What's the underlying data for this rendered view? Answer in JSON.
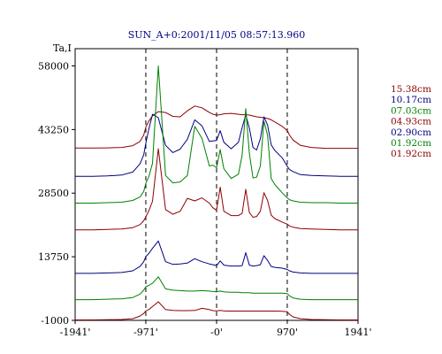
{
  "chart_data": {
    "type": "line",
    "title": "SUN_A+0:2001/11/05 08:57:13.960",
    "ylabel": "Ta,I",
    "xlabel": "",
    "xlim": [
      -1941,
      1941
    ],
    "ylim": [
      -1000,
      62000
    ],
    "x_ticks": [
      {
        "value": -1941,
        "label": "-1941'"
      },
      {
        "value": -971,
        "label": "-971'"
      },
      {
        "value": 0,
        "label": "-0'"
      },
      {
        "value": 970,
        "label": "970'"
      },
      {
        "value": 1941,
        "label": "1941'"
      }
    ],
    "y_ticks": [
      {
        "value": 58000,
        "label": "58000"
      },
      {
        "value": 43250,
        "label": "43250"
      },
      {
        "value": 28500,
        "label": "28500"
      },
      {
        "value": 13750,
        "label": "13750"
      },
      {
        "value": -1000,
        "label": "-1000"
      }
    ],
    "vlines_dashed": [
      -971,
      0,
      970
    ],
    "grid": false,
    "legend_position": "right",
    "x": [
      -1941,
      -1700,
      -1500,
      -1300,
      -1150,
      -1050,
      -1000,
      -971,
      -930,
      -880,
      -800,
      -700,
      -600,
      -500,
      -400,
      -300,
      -200,
      -100,
      -50,
      0,
      50,
      100,
      200,
      300,
      350,
      400,
      450,
      500,
      550,
      600,
      650,
      700,
      750,
      800,
      900,
      970,
      1000,
      1050,
      1150,
      1300,
      1500,
      1700,
      1941
    ],
    "series": [
      {
        "name": "15.38cm",
        "color": "#8b0000",
        "values": [
          38950,
          38950,
          39000,
          39100,
          39500,
          40500,
          42000,
          43800,
          45200,
          46400,
          47400,
          47200,
          46300,
          46200,
          47600,
          48700,
          48300,
          47200,
          46800,
          46600,
          46700,
          46900,
          47000,
          46800,
          46700,
          46700,
          46600,
          46400,
          46200,
          46100,
          46000,
          45800,
          45500,
          45000,
          44000,
          43000,
          42000,
          40800,
          39600,
          39100,
          38900,
          38900,
          38900
        ]
      },
      {
        "name": "10.17cm",
        "color": "#000080",
        "values": [
          32400,
          32400,
          32500,
          32700,
          33400,
          35300,
          37400,
          40100,
          43300,
          46800,
          46000,
          39600,
          37900,
          38700,
          41000,
          45500,
          44100,
          40500,
          40600,
          40700,
          43000,
          40300,
          38800,
          40300,
          43700,
          46700,
          43600,
          39100,
          38500,
          41100,
          46200,
          44300,
          39700,
          38400,
          36700,
          34700,
          34000,
          33500,
          32800,
          32600,
          32500,
          32400,
          32400
        ]
      },
      {
        "name": "07.03cm",
        "color": "#008000",
        "values": [
          26200,
          26200,
          26300,
          26400,
          26800,
          27600,
          28900,
          30800,
          32300,
          35400,
          58000,
          32600,
          30900,
          31100,
          32600,
          44000,
          41200,
          34800,
          35000,
          34400,
          38600,
          34200,
          31900,
          32900,
          37300,
          48100,
          37700,
          32000,
          32200,
          34800,
          45200,
          41900,
          31900,
          30500,
          28600,
          27400,
          27000,
          26700,
          26400,
          26300,
          26300,
          26200,
          26200
        ]
      },
      {
        "name": "04.93cm",
        "color": "#8b0000",
        "values": [
          20000,
          20000,
          20100,
          20200,
          20500,
          21200,
          22100,
          23000,
          24400,
          26600,
          38800,
          24700,
          23600,
          24300,
          27300,
          26700,
          27400,
          26200,
          25100,
          24500,
          29900,
          24300,
          23300,
          23300,
          23800,
          29400,
          24000,
          22900,
          23100,
          24300,
          28600,
          26800,
          23400,
          22600,
          21800,
          21300,
          20900,
          20600,
          20300,
          20200,
          20100,
          20000,
          20000
        ]
      },
      {
        "name": "02.90cm",
        "color": "#000080",
        "values": [
          9900,
          9900,
          10000,
          10100,
          10500,
          11500,
          12600,
          13800,
          14500,
          15700,
          17400,
          12600,
          12000,
          12100,
          12300,
          13300,
          12600,
          12100,
          11900,
          11700,
          12800,
          11800,
          11600,
          11600,
          11700,
          14700,
          11800,
          11600,
          11700,
          11900,
          14000,
          12900,
          11500,
          11300,
          11100,
          10800,
          10500,
          10200,
          10000,
          9900,
          9900,
          9900,
          9900
        ]
      },
      {
        "name": "01.92cm",
        "color": "#008000",
        "values": [
          3800,
          3800,
          3900,
          4000,
          4300,
          5100,
          6000,
          6800,
          7100,
          7600,
          9100,
          6300,
          6000,
          5900,
          5800,
          5800,
          5900,
          5800,
          5700,
          5600,
          5800,
          5600,
          5500,
          5500,
          5400,
          5400,
          5400,
          5300,
          5300,
          5300,
          5300,
          5300,
          5300,
          5300,
          5300,
          5200,
          4700,
          4200,
          3900,
          3800,
          3800,
          3800,
          3800
        ]
      },
      {
        "name": "01.92cm",
        "color": "#8b0000",
        "values": [
          -900,
          -900,
          -850,
          -800,
          -600,
          0,
          600,
          1200,
          1500,
          2200,
          3300,
          1500,
          1300,
          1250,
          1250,
          1300,
          1800,
          1500,
          1250,
          1200,
          1300,
          1200,
          1150,
          1150,
          1150,
          1150,
          1150,
          1150,
          1150,
          1150,
          1150,
          1150,
          1150,
          1150,
          1100,
          1000,
          400,
          -200,
          -600,
          -800,
          -850,
          -900,
          -900
        ]
      }
    ]
  }
}
